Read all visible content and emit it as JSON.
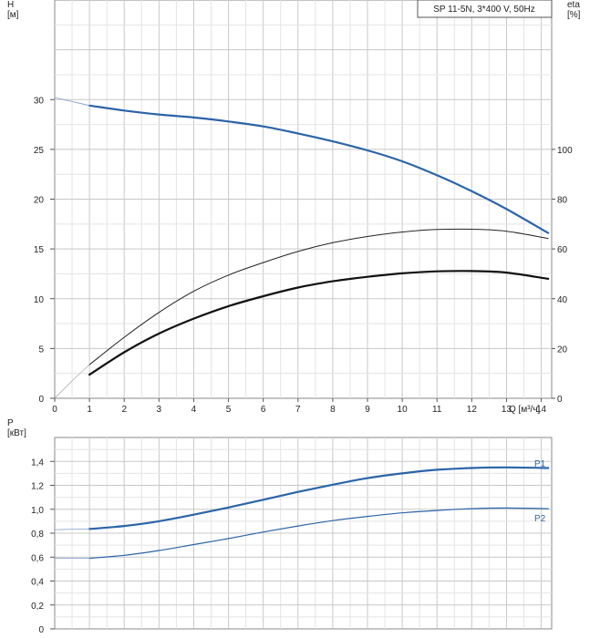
{
  "chart_data": [
    {
      "type": "line",
      "title": "SP 11-5N, 3*400 V, 50Hz",
      "xlabel": "Q [м³/ч]",
      "ylabel": "H\n[м]",
      "y2label": "eta\n[%]",
      "xlim": [
        0,
        14.3
      ],
      "ylim": [
        0,
        40
      ],
      "y2lim": [
        0,
        160
      ],
      "xticks": [
        0,
        1,
        2,
        3,
        4,
        5,
        6,
        7,
        8,
        9,
        10,
        11,
        12,
        13,
        14
      ],
      "yticks": [
        0,
        5,
        10,
        15,
        20,
        25,
        30
      ],
      "y2ticks": [
        0,
        20,
        40,
        60,
        80,
        100
      ],
      "grid": true,
      "series": [
        {
          "curve": "H",
          "axis": "left",
          "color": "#2b64a8",
          "width": 2.2,
          "x": [
            1,
            2,
            3,
            4,
            5,
            6,
            7,
            8,
            9,
            10,
            11,
            12,
            13,
            14.2
          ],
          "y": [
            29.4,
            28.9,
            28.5,
            28.2,
            27.8,
            27.3,
            26.6,
            25.8,
            24.9,
            23.8,
            22.4,
            20.8,
            19.0,
            16.6
          ]
        },
        {
          "curve": "H-extension",
          "axis": "left",
          "color": "#7a9ac9",
          "width": 0.8,
          "x": [
            0,
            0.5,
            1
          ],
          "y": [
            30.2,
            29.8,
            29.4
          ]
        },
        {
          "curve": "eta-thin",
          "axis": "right",
          "color": "#222222",
          "width": 1.0,
          "x": [
            1,
            2,
            3,
            4,
            5,
            6,
            7,
            8,
            9,
            10,
            11,
            12,
            13,
            14.2
          ],
          "y": [
            13.5,
            24.5,
            34.5,
            43,
            49.5,
            54.5,
            59,
            62.5,
            65,
            66.8,
            67.8,
            67.9,
            67.1,
            64.2
          ]
        },
        {
          "curve": "eta-thin-extension",
          "axis": "right",
          "color": "#999999",
          "width": 0.6,
          "x": [
            0,
            0.5,
            1
          ],
          "y": [
            0,
            7,
            13.5
          ]
        },
        {
          "curve": "eta-bold",
          "axis": "right",
          "color": "#111111",
          "width": 2.2,
          "x": [
            1,
            2,
            3,
            4,
            5,
            6,
            7,
            8,
            9,
            10,
            11,
            12,
            13,
            14.2
          ],
          "y": [
            9.5,
            18.5,
            26,
            32,
            37,
            41,
            44.5,
            47,
            48.8,
            50.2,
            51,
            51.1,
            50.5,
            48
          ]
        }
      ]
    },
    {
      "type": "line",
      "ylabel": "P\n[кВт]",
      "xlim": [
        0,
        14.3
      ],
      "ylim": [
        0,
        1.6
      ],
      "yticks": [
        "0",
        "0,2",
        "0,4",
        "0,6",
        "0,8",
        "1,0",
        "1,2",
        "1,4"
      ],
      "ytick_values": [
        0,
        0.2,
        0.4,
        0.6,
        0.8,
        1.0,
        1.2,
        1.4
      ],
      "grid": true,
      "series": [
        {
          "name": "P1",
          "color": "#2b64a8",
          "width": 2.2,
          "x": [
            1,
            2,
            3,
            4,
            5,
            6,
            7,
            8,
            9,
            10,
            11,
            12,
            13,
            14.2
          ],
          "y": [
            0.835,
            0.86,
            0.9,
            0.955,
            1.015,
            1.08,
            1.145,
            1.205,
            1.26,
            1.3,
            1.33,
            1.345,
            1.35,
            1.345
          ]
        },
        {
          "name": "P1-extension",
          "color": "#7a9ac9",
          "width": 0.8,
          "x": [
            0,
            1
          ],
          "y": [
            0.83,
            0.835
          ]
        },
        {
          "name": "P2",
          "color": "#2b64a8",
          "width": 1.2,
          "x": [
            1,
            2,
            3,
            4,
            5,
            6,
            7,
            8,
            9,
            10,
            11,
            12,
            13,
            14.2
          ],
          "y": [
            0.59,
            0.615,
            0.655,
            0.705,
            0.755,
            0.81,
            0.86,
            0.905,
            0.94,
            0.97,
            0.99,
            1.005,
            1.01,
            1.005
          ]
        },
        {
          "name": "P2-extension",
          "color": "#7a9ac9",
          "width": 0.8,
          "x": [
            0,
            1
          ],
          "y": [
            0.59,
            0.59
          ]
        }
      ]
    }
  ]
}
